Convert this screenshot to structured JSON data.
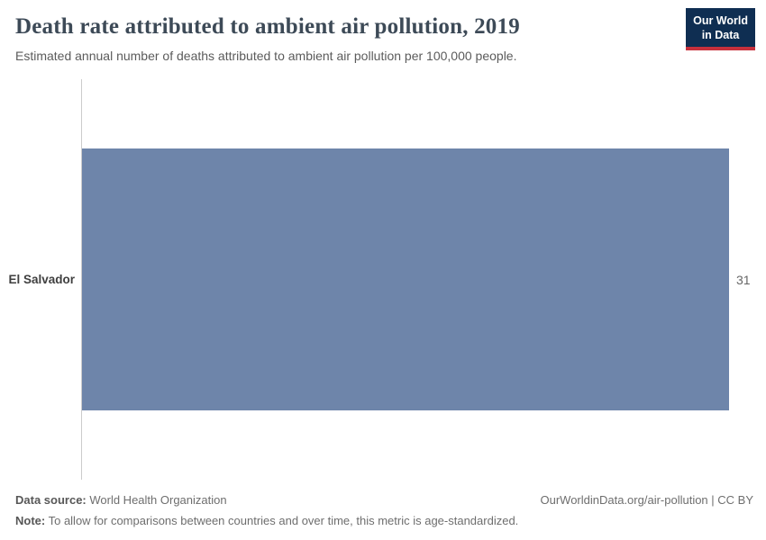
{
  "header": {
    "title": "Death rate attributed to ambient air pollution, 2019",
    "subtitle": "Estimated annual number of deaths attributed to ambient air pollution per 100,000 people.",
    "logo_line1": "Our World",
    "logo_line2": "in Data"
  },
  "chart_data": {
    "type": "bar",
    "orientation": "horizontal",
    "title": "Death rate attributed to ambient air pollution, 2019",
    "subtitle": "Estimated annual number of deaths attributed to ambient air pollution per 100,000 people.",
    "categories": [
      "El Salvador"
    ],
    "values": [
      31
    ],
    "value_labels": [
      "31"
    ],
    "xlim": [
      0,
      31
    ],
    "grid": false,
    "legend": "none",
    "bar_color": "#6e85aa",
    "axis_color": "#cccccc"
  },
  "footer": {
    "source_label": "Data source:",
    "source": " World Health Organization",
    "note_label": "Note:",
    "note": " To allow for comparisons between countries and over time, this metric is age-standardized.",
    "attribution": "OurWorldinData.org/air-pollution | CC BY"
  }
}
